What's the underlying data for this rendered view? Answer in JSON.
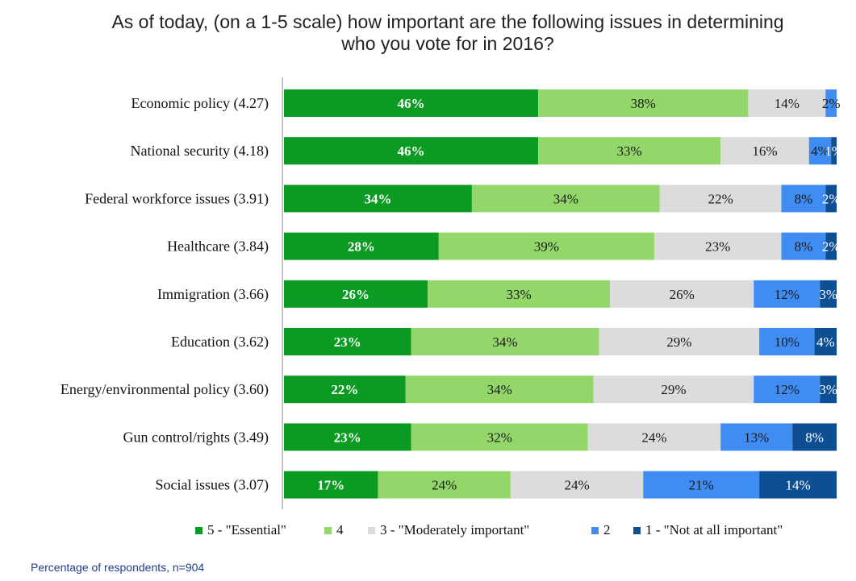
{
  "title_lines": [
    "As of today, (on a 1-5 scale) how important are the following issues in determining",
    "who you vote for in 2016?"
  ],
  "footnote": "Percentage of respondents, n=904",
  "colors": {
    "essential": "#0b9a22",
    "four": "#93d76b",
    "moderate": "#dcdcdc",
    "two": "#3f8cf2",
    "not_at_all": "#0e4f93"
  },
  "chart_data": {
    "type": "bar",
    "orientation": "horizontal",
    "stacked": true,
    "title": "As of today, (on a 1-5 scale) how important are the following issues in determining who you vote for in 2016?",
    "xlabel": "",
    "ylabel": "",
    "xlim": [
      0,
      100
    ],
    "categories": [
      "Economic policy (4.27)",
      "National security (4.18)",
      "Federal workforce issues (3.91)",
      "Healthcare (3.84)",
      "Immigration (3.66)",
      "Education (3.62)",
      "Energy/environmental policy (3.60)",
      "Gun control/rights (3.49)",
      "Social issues (3.07)"
    ],
    "series": [
      {
        "name": "5 - \"Essential\"",
        "color": "#0b9a22",
        "text_color": "#ffffff",
        "values": [
          46,
          46,
          34,
          28,
          26,
          23,
          22,
          23,
          17
        ],
        "labels": [
          "46%",
          "46%",
          "34%",
          "28%",
          "26%",
          "23%",
          "22%",
          "23%",
          "17%"
        ]
      },
      {
        "name": "4",
        "color": "#93d76b",
        "text_color": "#1a1a1a",
        "values": [
          38,
          33,
          34,
          39,
          33,
          34,
          34,
          32,
          24
        ],
        "labels": [
          "38%",
          "33%",
          "34%",
          "39%",
          "33%",
          "34%",
          "34%",
          "32%",
          "24%"
        ]
      },
      {
        "name": "3 - \"Moderately important\"",
        "color": "#dcdcdc",
        "text_color": "#1a1a1a",
        "values": [
          14,
          16,
          22,
          23,
          26,
          29,
          29,
          24,
          24
        ],
        "labels": [
          "14%",
          "16%",
          "22%",
          "23%",
          "26%",
          "29%",
          "29%",
          "24%",
          "24%"
        ]
      },
      {
        "name": "2",
        "color": "#3f8cf2",
        "text_color": "#1a1a1a",
        "values": [
          2,
          4,
          8,
          8,
          12,
          10,
          12,
          13,
          21
        ],
        "labels": [
          "2%",
          "4%",
          "8%",
          "8%",
          "12%",
          "10%",
          "12%",
          "13%",
          "21%"
        ]
      },
      {
        "name": "1 - \"Not at all important\"",
        "color": "#0e4f93",
        "text_color": "#ffffff",
        "values": [
          0,
          1,
          2,
          2,
          3,
          4,
          3,
          8,
          14
        ],
        "labels": [
          "",
          "1%",
          "2%",
          "2%",
          "3%",
          "4%",
          "3%",
          "8%",
          "14%"
        ]
      }
    ],
    "legend_position": "bottom"
  }
}
